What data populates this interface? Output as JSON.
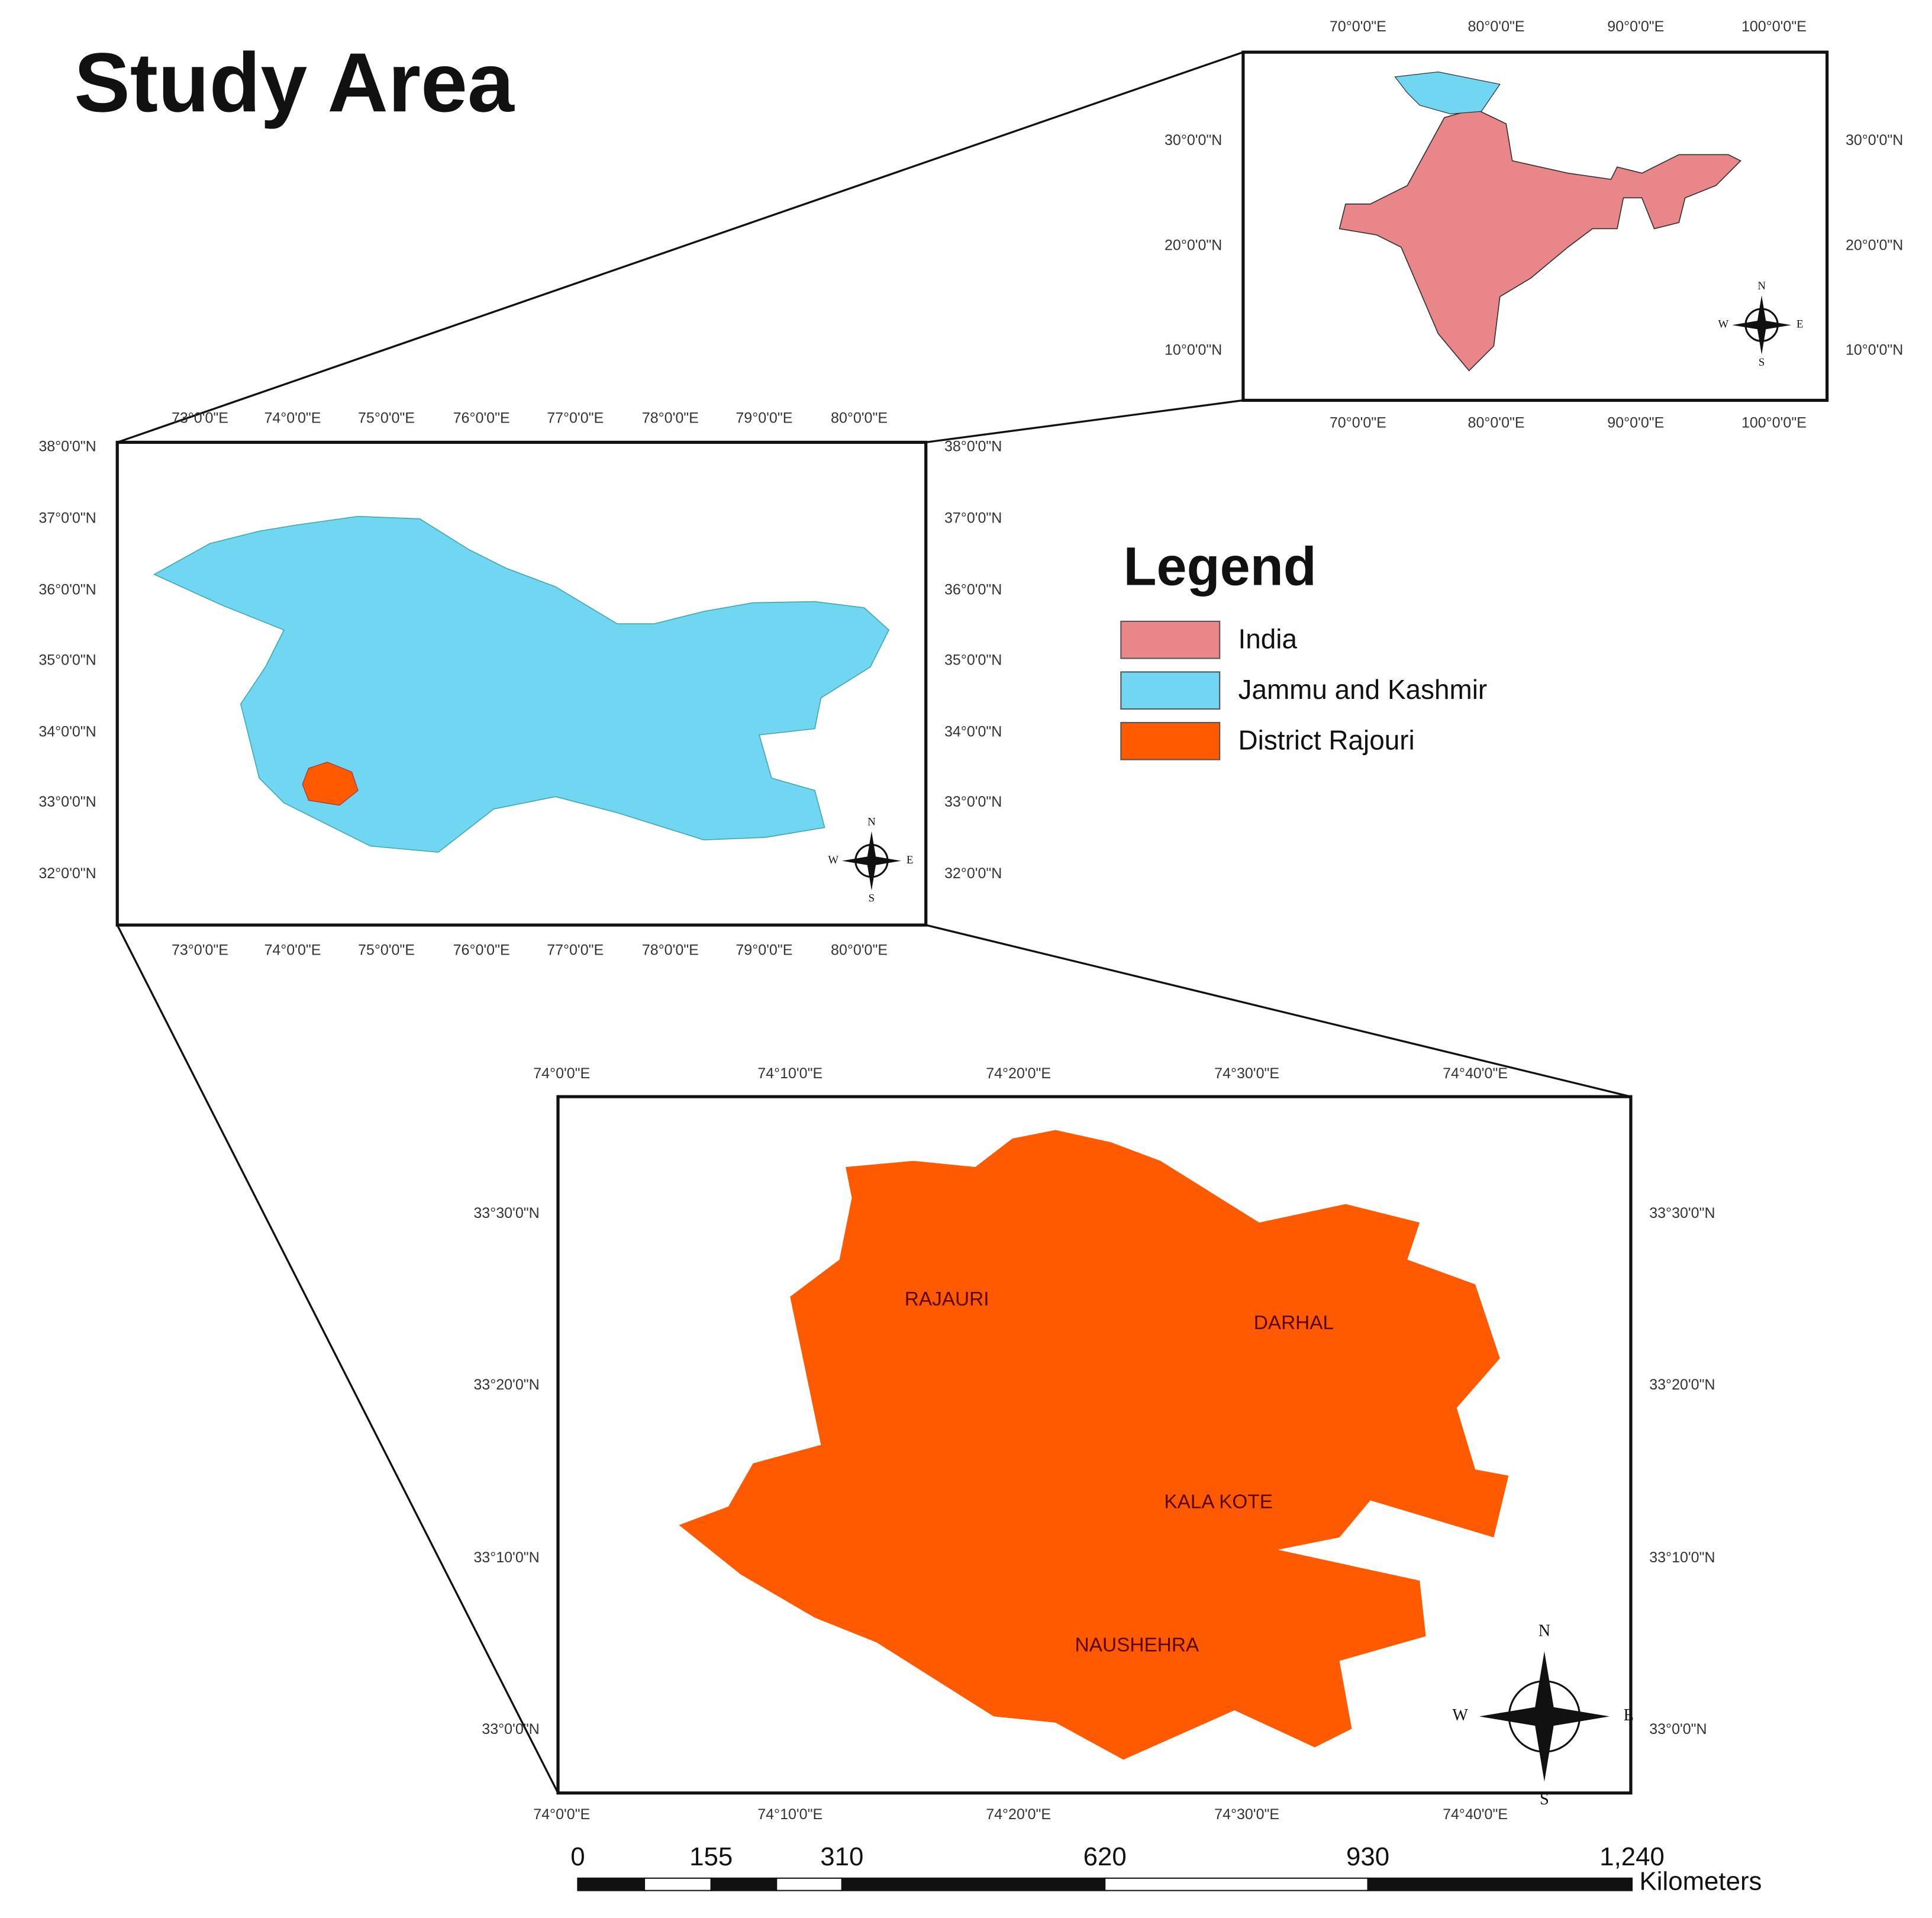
{
  "title": "Study Area",
  "legend": {
    "title": "Legend",
    "items": [
      {
        "label": "India",
        "color": "#e8868a"
      },
      {
        "label": "Jammu and Kashmir",
        "color": "#70d6f2"
      },
      {
        "label": "District Rajouri",
        "color": "#ff5a00"
      }
    ]
  },
  "maps": [
    {
      "name": "India",
      "x_labels": [
        "70°0'0\"E",
        "80°0'0\"E",
        "90°0'0\"E",
        "100°0'0\"E"
      ],
      "y_labels": [
        "30°0'0\"N",
        "20°0'0\"N",
        "10°0'0\"N"
      ]
    },
    {
      "name": "Jammu and Kashmir",
      "x_labels": [
        "73°0'0\"E",
        "74°0'0\"E",
        "75°0'0\"E",
        "76°0'0\"E",
        "77°0'0\"E",
        "78°0'0\"E",
        "79°0'0\"E",
        "80°0'0\"E"
      ],
      "y_labels": [
        "38°0'0\"N",
        "37°0'0\"N",
        "36°0'0\"N",
        "35°0'0\"N",
        "34°0'0\"N",
        "33°0'0\"N",
        "32°0'0\"N"
      ]
    },
    {
      "name": "District Rajouri",
      "x_labels": [
        "74°0'0\"E",
        "74°10'0\"E",
        "74°20'0\"E",
        "74°30'0\"E",
        "74°40'0\"E"
      ],
      "y_labels": [
        "33°30'0\"N",
        "33°20'0\"N",
        "33°10'0\"N",
        "33°0'0\"N"
      ]
    }
  ],
  "district_labels": [
    "RAJAURI",
    "DARHAL",
    "KALA KOTE",
    "NAUSHEHRA"
  ],
  "compass": {
    "n": "N",
    "s": "S",
    "e": "E",
    "w": "W"
  },
  "scale_bar": {
    "labels": [
      "0",
      "155",
      "310",
      "620",
      "930",
      "1,240"
    ],
    "unit": "Kilometers"
  }
}
